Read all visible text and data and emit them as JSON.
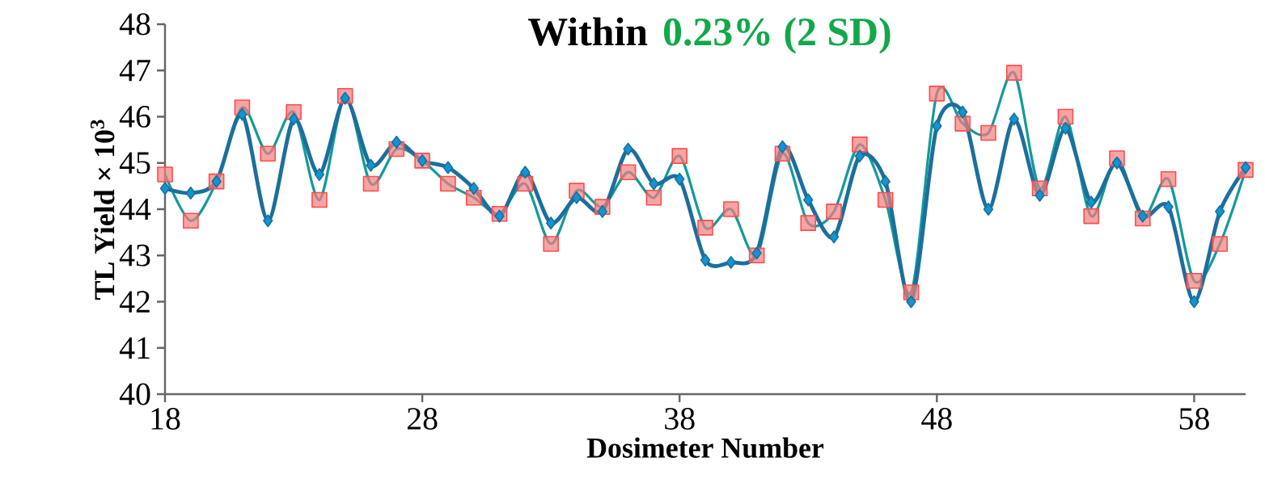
{
  "chart_data": {
    "type": "line",
    "title": "Within",
    "subtitle": "0.23% (2 SD)",
    "xlabel": "Dosimeter Number",
    "ylabel": "TL Yield × 10$^{3}$",
    "x": [
      18,
      19,
      20,
      21,
      22,
      23,
      24,
      25,
      26,
      27,
      28,
      29,
      30,
      31,
      32,
      33,
      34,
      35,
      36,
      37,
      38,
      39,
      40,
      41,
      42,
      43,
      44,
      45,
      46,
      47,
      48,
      49,
      50,
      51,
      52,
      53,
      54,
      55,
      56,
      57,
      58,
      59,
      60
    ],
    "xlim": [
      18,
      60
    ],
    "xticks": [
      18,
      28,
      38,
      48,
      58
    ],
    "ylim": [
      40,
      48
    ],
    "yticks": [
      40,
      41,
      42,
      43,
      44,
      45,
      46,
      47,
      48
    ],
    "grid": false,
    "series": [
      {
        "color": "#1b6f9c",
        "marker": "diamond",
        "values": [
          44.45,
          44.35,
          44.6,
          46.05,
          43.75,
          45.95,
          44.75,
          46.4,
          44.95,
          45.45,
          45.05,
          44.9,
          44.45,
          43.85,
          44.8,
          43.7,
          44.25,
          43.95,
          45.3,
          44.55,
          44.65,
          42.9,
          42.85,
          43.05,
          45.35,
          44.2,
          43.4,
          45.15,
          44.6,
          42.0,
          45.8,
          46.1,
          44.0,
          45.95,
          44.3,
          45.75,
          44.15,
          45.0,
          43.85,
          44.05,
          42.0,
          43.95,
          44.9
        ]
      },
      {
        "color": "#14999b",
        "marker": "square",
        "values": [
          44.75,
          43.75,
          44.6,
          46.2,
          45.2,
          46.1,
          44.2,
          46.45,
          44.55,
          45.3,
          45.05,
          44.55,
          44.25,
          43.9,
          44.55,
          43.25,
          44.4,
          44.05,
          44.8,
          44.25,
          45.15,
          43.6,
          44.0,
          43.0,
          45.2,
          43.7,
          43.95,
          45.4,
          44.2,
          42.2,
          46.5,
          45.85,
          45.65,
          46.95,
          44.45,
          46.0,
          43.85,
          45.1,
          43.8,
          44.65,
          42.45,
          43.25,
          44.85
        ]
      }
    ]
  }
}
